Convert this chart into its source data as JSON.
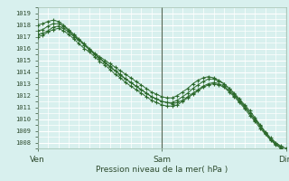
{
  "title": "Pression niveau de la mer( hPa )",
  "bg_color": "#d8f0ee",
  "grid_color": "#ffffff",
  "line_color": "#2d6a2d",
  "marker_color": "#2d6a2d",
  "vline_color": "#556655",
  "x_ticks": [
    0,
    36,
    72
  ],
  "x_tick_labels": [
    "Ven",
    "Sam",
    "Dim"
  ],
  "ylim": [
    1007.5,
    1019.5
  ],
  "yticks": [
    1008,
    1009,
    1010,
    1011,
    1012,
    1013,
    1014,
    1015,
    1016,
    1017,
    1018,
    1019
  ],
  "n_points": 49,
  "series": [
    [
      1018.0,
      1018.1,
      1018.3,
      1018.4,
      1018.3,
      1018.0,
      1017.6,
      1017.2,
      1016.8,
      1016.4,
      1016.0,
      1015.6,
      1015.3,
      1015.0,
      1014.7,
      1014.4,
      1014.1,
      1013.8,
      1013.5,
      1013.2,
      1012.9,
      1012.6,
      1012.3,
      1012.1,
      1011.9,
      1011.8,
      1011.8,
      1012.0,
      1012.3,
      1012.6,
      1013.0,
      1013.3,
      1013.5,
      1013.6,
      1013.5,
      1013.3,
      1013.0,
      1012.6,
      1012.2,
      1011.7,
      1011.2,
      1010.7,
      1010.1,
      1009.5,
      1008.9,
      1008.4,
      1008.0,
      1007.7,
      1007.5
    ],
    [
      1017.2,
      1017.3,
      1017.5,
      1017.8,
      1017.9,
      1017.7,
      1017.4,
      1017.0,
      1016.7,
      1016.3,
      1015.9,
      1015.5,
      1015.2,
      1014.8,
      1014.5,
      1014.1,
      1013.8,
      1013.4,
      1013.1,
      1012.8,
      1012.5,
      1012.2,
      1011.9,
      1011.7,
      1011.5,
      1011.4,
      1011.3,
      1011.4,
      1011.6,
      1011.9,
      1012.2,
      1012.5,
      1012.8,
      1013.0,
      1013.1,
      1013.0,
      1012.8,
      1012.4,
      1012.0,
      1011.5,
      1011.0,
      1010.5,
      1009.9,
      1009.4,
      1008.8,
      1008.3,
      1007.9,
      1007.6,
      1007.3
    ],
    [
      1017.0,
      1017.1,
      1017.4,
      1017.6,
      1017.7,
      1017.5,
      1017.2,
      1016.8,
      1016.4,
      1016.0,
      1015.7,
      1015.3,
      1014.9,
      1014.6,
      1014.2,
      1013.8,
      1013.5,
      1013.1,
      1012.8,
      1012.5,
      1012.2,
      1011.9,
      1011.6,
      1011.4,
      1011.2,
      1011.1,
      1011.1,
      1011.2,
      1011.5,
      1011.8,
      1012.1,
      1012.4,
      1012.7,
      1012.9,
      1013.0,
      1012.9,
      1012.7,
      1012.3,
      1011.9,
      1011.4,
      1010.9,
      1010.3,
      1009.8,
      1009.2,
      1008.7,
      1008.2,
      1007.8,
      1007.5,
      1007.2
    ],
    [
      1017.5,
      1017.6,
      1017.9,
      1018.1,
      1018.1,
      1017.9,
      1017.5,
      1017.1,
      1016.7,
      1016.3,
      1015.9,
      1015.5,
      1015.1,
      1014.8,
      1014.4,
      1014.1,
      1013.7,
      1013.4,
      1013.1,
      1012.8,
      1012.5,
      1012.2,
      1011.9,
      1011.7,
      1011.5,
      1011.4,
      1011.4,
      1011.6,
      1011.9,
      1012.2,
      1012.6,
      1012.9,
      1013.2,
      1013.4,
      1013.4,
      1013.2,
      1013.0,
      1012.6,
      1012.1,
      1011.6,
      1011.1,
      1010.5,
      1010.0,
      1009.4,
      1008.8,
      1008.3,
      1007.9,
      1007.6,
      1007.3
    ]
  ]
}
